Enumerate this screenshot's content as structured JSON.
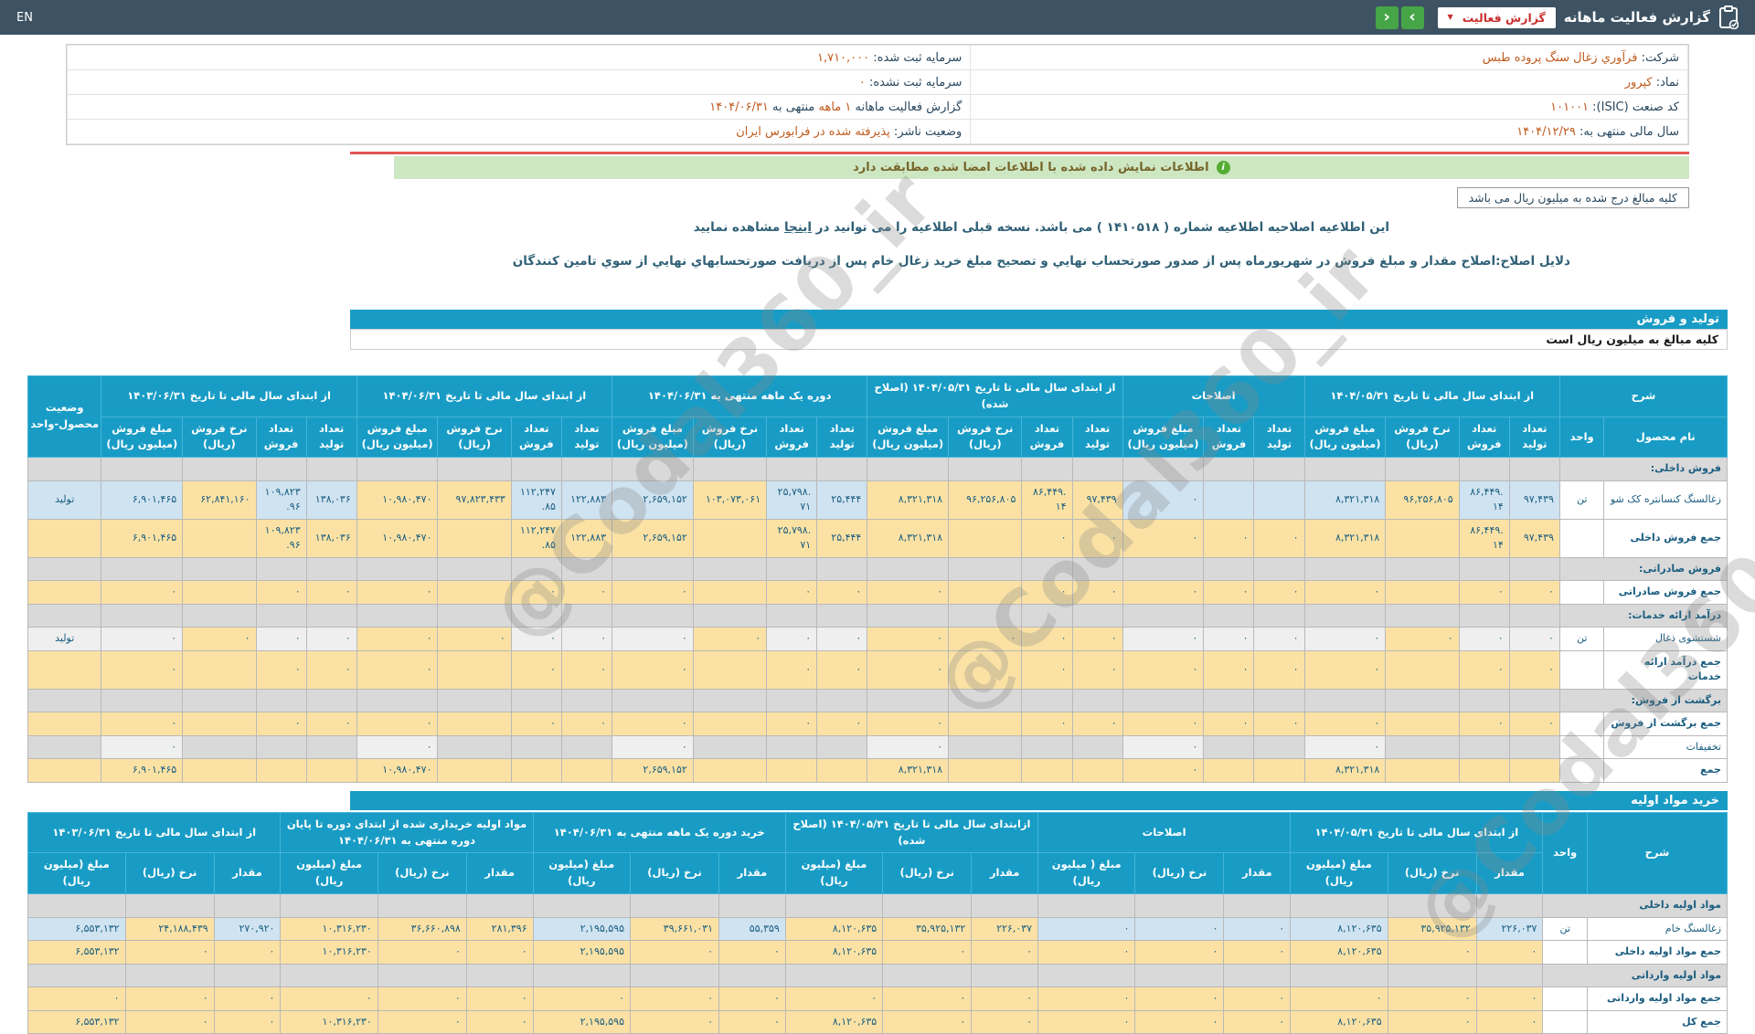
{
  "topbar": {
    "en": "EN",
    "title": "گزارش فعالیت ماهانه",
    "dropdown_label": "گزارش فعالیت",
    "caret": "▼",
    "nav_prev": "‹",
    "nav_next": "›"
  },
  "info": {
    "rows": [
      {
        "right": [
          [
            "شرکت: ",
            "l"
          ],
          [
            "فرآوري زغال سنگ پروده طبس",
            "v"
          ]
        ],
        "left": [
          [
            "سرمایه ثبت شده: ",
            "l"
          ],
          [
            "۱,۷۱۰,۰۰۰",
            "v"
          ]
        ]
      },
      {
        "right": [
          [
            "نماد: ",
            "l"
          ],
          [
            "کپرور",
            "v"
          ]
        ],
        "left": [
          [
            "سرمایه ثبت نشده: ",
            "l"
          ],
          [
            "۰",
            "v"
          ]
        ]
      },
      {
        "right": [
          [
            "کد صنعت (ISIC): ",
            "l"
          ],
          [
            "۱۰۱۰۰۱",
            "v"
          ]
        ],
        "left": [
          [
            "گزارش فعالیت ماهانه ",
            "l"
          ],
          [
            "۱ ماهه",
            "v"
          ],
          [
            " منتهی به ",
            "l"
          ],
          [
            "۱۴۰۴/۰۶/۳۱",
            "v"
          ]
        ]
      },
      {
        "right": [
          [
            "سال مالی منتهی به: ",
            "l"
          ],
          [
            "۱۴۰۴/۱۲/۲۹",
            "v"
          ]
        ],
        "left": [
          [
            "وضعیت ناشر: ",
            "l"
          ],
          [
            "پذیرفته شده در فرابورس ایران",
            "v"
          ]
        ]
      }
    ]
  },
  "banner": {
    "icon": "i",
    "text": "اطلاعات نمایش داده شده با اطلاعات امضا شده مطابقت دارد"
  },
  "unit_box": "کلیه مبالغ درج شده به میلیون ریال می باشد",
  "notice": {
    "pre": "این اطلاعیه اصلاحیه اطلاعیه شماره ( ۱۴۱۰۵۱۸ ) می باشد. نسخه قبلی اطلاعیه را می توانید در ",
    "link": "اینجا",
    "post": " مشاهده نمایید",
    "reason": "دلایل اصلاح:اصلاح مقدار و مبلغ فروش در شهریورماه پس از صدور صورتحساب نهایي و تصحیح مبلغ خرید زغال خام پس از دریافت صورتحسابهاي نهایي از سوي تامین کنندگان"
  },
  "watermark": "@Codal360_ir",
  "section1": {
    "title": "تولید و فروش",
    "subtitle": "کلیه مبالغ به میلیون ریال است"
  },
  "section2": {
    "title": "خرید مواد اولیه"
  },
  "colors": {
    "topbar": "#3d5363",
    "accent_blue": "#189cc5",
    "cell_blue": "#cfe3f1",
    "cell_yellow": "#fbe2a4",
    "green_banner": "#cde7c3",
    "red_line": "#e25653",
    "nav_green": "#46a546",
    "dropdown_red": "#c9302c",
    "value_orange": "#c05a1e"
  },
  "table1": {
    "status_col": true,
    "head1": [
      {
        "l": "شرح",
        "cs": 2,
        "rs": 1
      },
      {
        "l": "از ابتدای سال مالی تا تاریخ ۱۴۰۴/۰۵/۳۱",
        "cs": 4,
        "rs": 1
      },
      {
        "l": "اصلاحات",
        "cs": 3,
        "rs": 1
      },
      {
        "l": "از ابتدای سال مالی تا تاریخ ۱۴۰۴/۰۵/۳۱ (اصلاح شده)",
        "cs": 4,
        "rs": 1
      },
      {
        "l": "دوره یک ماهه منتهی به ۱۴۰۴/۰۶/۳۱",
        "cs": 4,
        "rs": 1
      },
      {
        "l": "از ابتدای سال مالی تا تاریخ ۱۴۰۴/۰۶/۳۱",
        "cs": 4,
        "rs": 1
      },
      {
        "l": "از ابتدای سال مالی تا تاریخ ۱۴۰۳/۰۶/۳۱",
        "cs": 4,
        "rs": 1
      },
      {
        "l": "وضعیت محصول-واحد",
        "cs": 1,
        "rs": 2
      }
    ],
    "head2": [
      "نام محصول",
      "واحد",
      "تعداد تولید",
      "تعداد فروش",
      "نرخ فروش (ریال)",
      "مبلغ فروش (میلیون ریال)",
      "تعداد تولید",
      "تعداد فروش",
      "مبلغ فروش (میلیون ریال)",
      "تعداد تولید",
      "تعداد فروش",
      "نرخ فروش (ریال)",
      "مبلغ فروش (میلیون ریال)",
      "تعداد تولید",
      "تعداد فروش",
      "نرخ فروش (ریال)",
      "مبلغ فروش (میلیون ریال)",
      "تعداد تولید",
      "تعداد فروش",
      "نرخ فروش (ریال)",
      "مبلغ فروش (میلیون ریال)",
      "تعداد تولید",
      "تعداد فروش",
      "نرخ فروش (ریال)",
      "مبلغ فروش (میلیون ریال)"
    ],
    "cols": [
      "n",
      "u",
      "q",
      "q",
      "r",
      "a",
      "q",
      "q",
      "a",
      "q",
      "q",
      "r",
      "a",
      "q",
      "q",
      "r",
      "a",
      "q",
      "q",
      "r",
      "a",
      "q",
      "q",
      "r",
      "a",
      "s"
    ],
    "rows": [
      {
        "t": "s",
        "l": "فروش داخلی:"
      },
      {
        "t": "d",
        "l": "زغالسنگ کنسانتره کک شو",
        "u": "تن",
        "st": "تولید",
        "base": "b",
        "y": [
          2,
          7,
          8,
          9,
          10,
          13,
          17,
          18,
          21
        ],
        "c": [
          "۹۷,۴۳۹",
          "۸۶,۴۴۹.۱۴",
          "۹۶,۲۵۶,۸۰۵",
          "۸,۳۲۱,۳۱۸",
          "",
          "",
          "۰",
          "۹۷,۴۳۹",
          "۸۶,۴۴۹.۱۴",
          "۹۶,۲۵۶,۸۰۵",
          "۸,۳۲۱,۳۱۸",
          "۲۵,۴۴۴",
          "۲۵,۷۹۸.۷۱",
          "۱۰۳,۰۷۳,۰۶۱",
          "۲,۶۵۹,۱۵۲",
          "۱۲۲,۸۸۳",
          "۱۱۲,۲۴۷.۸۵",
          "۹۷,۸۲۳,۴۳۳",
          "۱۰,۹۸۰,۴۷۰",
          "۱۳۸,۰۳۶",
          "۱۰۹,۸۲۳.۹۶",
          "۶۲,۸۴۱,۱۶۰",
          "۶,۹۰۱,۴۶۵"
        ]
      },
      {
        "t": "t",
        "l": "جمع فروش داخلی",
        "c": [
          "۹۷,۴۳۹",
          "۸۶,۴۴۹.۱۴",
          "",
          "۸,۳۲۱,۳۱۸",
          "۰",
          "۰",
          "۰",
          "۰",
          "۰",
          "",
          "۸,۳۲۱,۳۱۸",
          "۲۵,۴۴۴",
          "۲۵,۷۹۸.۷۱",
          "",
          "۲,۶۵۹,۱۵۲",
          "۱۲۲,۸۸۳",
          "۱۱۲,۲۴۷.۸۵",
          "",
          "۱۰,۹۸۰,۴۷۰",
          "۱۳۸,۰۳۶",
          "۱۰۹,۸۲۳.۹۶",
          "",
          "۶,۹۰۱,۴۶۵"
        ]
      },
      {
        "t": "s",
        "l": "فروش صادراتی:"
      },
      {
        "t": "t",
        "l": "جمع فروش صادراتی",
        "c": [
          "۰",
          "۰",
          "",
          "۰",
          "۰",
          "۰",
          "۰",
          "۰",
          "۰",
          "",
          "۰",
          "۰",
          "۰",
          "",
          "۰",
          "۰",
          "۰",
          "",
          "۰",
          "۰",
          "۰",
          "",
          "۰"
        ]
      },
      {
        "t": "s",
        "l": "درآمد ارائه خدمات:"
      },
      {
        "t": "d",
        "l": "شستشوی ذغال",
        "u": "تن",
        "st": "تولید",
        "base": "w",
        "y": [
          2,
          7,
          8,
          9,
          10,
          13,
          17,
          18,
          21
        ],
        "c": [
          "۰",
          "۰",
          "۰",
          "۰",
          "۰",
          "۰",
          "۰",
          "۰",
          "۰",
          "۰",
          "۰",
          "۰",
          "۰",
          "۰",
          "۰",
          "۰",
          "۰",
          "۰",
          "۰",
          "۰",
          "۰",
          "۰",
          "۰"
        ]
      },
      {
        "t": "t",
        "l": "جمع درآمد ارائه خدمات",
        "c": [
          "۰",
          "۰",
          "",
          "۰",
          "۰",
          "۰",
          "۰",
          "۰",
          "۰",
          "",
          "۰",
          "۰",
          "۰",
          "",
          "۰",
          "۰",
          "۰",
          "",
          "۰",
          "۰",
          "۰",
          "",
          "۰"
        ]
      },
      {
        "t": "s",
        "l": "برگشت از فروش:"
      },
      {
        "t": "t",
        "l": "جمع برگشت از فروش",
        "c": [
          "۰",
          "۰",
          "",
          "۰",
          "۰",
          "۰",
          "۰",
          "۰",
          "۰",
          "",
          "۰",
          "۰",
          "۰",
          "",
          "۰",
          "۰",
          "۰",
          "",
          "۰",
          "۰",
          "۰",
          "",
          "۰"
        ]
      },
      {
        "t": "x",
        "l": "تخفیفات",
        "c": [
          "",
          "",
          "",
          "۰",
          "",
          "",
          "۰",
          "",
          "",
          "",
          "۰",
          "",
          "",
          "",
          "۰",
          "",
          "",
          "",
          "۰",
          "",
          "",
          "",
          "۰"
        ]
      },
      {
        "t": "t",
        "l": "جمع",
        "c": [
          "",
          "",
          "",
          "۸,۳۲۱,۳۱۸",
          "",
          "",
          "۰",
          "",
          "",
          "",
          "۸,۳۲۱,۳۱۸",
          "",
          "",
          "",
          "۲,۶۵۹,۱۵۲",
          "",
          "",
          "",
          "۱۰,۹۸۰,۴۷۰",
          "",
          "",
          "",
          "۶,۹۰۱,۴۶۵"
        ]
      }
    ]
  },
  "table2": {
    "status_col": false,
    "head1": [
      {
        "l": "شرح",
        "cs": 1,
        "rs": 2
      },
      {
        "l": "واحد",
        "cs": 1,
        "rs": 2
      },
      {
        "l": "از ابتدای سال مالی تا تاریخ ۱۴۰۴/۰۵/۳۱",
        "cs": 3,
        "rs": 1
      },
      {
        "l": "اصلاحات",
        "cs": 3,
        "rs": 1
      },
      {
        "l": "ازابتدای سال مالی تا تاریخ ۱۴۰۴/۰۵/۳۱ (اصلاح شده)",
        "cs": 3,
        "rs": 1
      },
      {
        "l": "خرید دوره یک ماهه منتهی به ۱۴۰۴/۰۶/۳۱",
        "cs": 3,
        "rs": 1
      },
      {
        "l": "مواد اولیه خریداری شده از ابتدای دوره تا پایان دوره منتهی به ۱۴۰۴/۰۶/۳۱",
        "cs": 3,
        "rs": 1
      },
      {
        "l": "از ابتدای سال مالی تا تاریخ ۱۴۰۳/۰۶/۳۱",
        "cs": 3,
        "rs": 1
      }
    ],
    "head2": [
      "مقدار",
      "نرخ (ریال)",
      "مبلغ (میلیون ریال)",
      "مقدار",
      "نرخ (ریال)",
      "مبلغ ( میلیون ریال)",
      "مقدار",
      "نرخ (ریال)",
      "مبلغ (میلیون ریال)",
      "مقدار",
      "نرخ (ریال)",
      "مبلغ (میلیون ریال)",
      "مقدار",
      "نرخ (ریال)",
      "مبلغ (میلیون ریال)",
      "مقدار",
      "نرخ (ریال)",
      "مبلغ (میلیون ریال)"
    ],
    "cols": [
      "n2",
      "u",
      "q2",
      "r2",
      "a2",
      "q2",
      "r2",
      "a2",
      "q2",
      "r2",
      "a2",
      "q2",
      "r2",
      "a2",
      "q2",
      "r2",
      "a2",
      "q2",
      "r2",
      "a2"
    ],
    "rows": [
      {
        "t": "s",
        "l": "مواد اولیه داخلی"
      },
      {
        "t": "d",
        "l": "زغالسنگ خام",
        "u": "تن",
        "base": "b",
        "y": [
          1,
          6,
          7,
          8,
          10,
          12,
          13,
          14,
          16
        ],
        "c": [
          "۲۲۶,۰۳۷",
          "۳۵,۹۲۵,۱۳۲",
          "۸,۱۲۰,۶۳۵",
          "۰",
          "۰",
          "۰",
          "۲۲۶,۰۳۷",
          "۳۵,۹۲۵,۱۳۲",
          "۸,۱۲۰,۶۳۵",
          "۵۵,۳۵۹",
          "۳۹,۶۶۱,۰۳۱",
          "۲,۱۹۵,۵۹۵",
          "۲۸۱,۳۹۶",
          "۳۶,۶۶۰,۸۹۸",
          "۱۰,۳۱۶,۲۳۰",
          "۲۷۰,۹۲۰",
          "۲۴,۱۸۸,۴۳۹",
          "۶,۵۵۳,۱۳۲"
        ]
      },
      {
        "t": "t",
        "l": "جمع مواد اولیه داخلی",
        "c": [
          "۰",
          "۰",
          "۸,۱۲۰,۶۳۵",
          "۰",
          "۰",
          "۰",
          "۰",
          "۰",
          "۸,۱۲۰,۶۳۵",
          "۰",
          "۰",
          "۲,۱۹۵,۵۹۵",
          "۰",
          "۰",
          "۱۰,۳۱۶,۲۳۰",
          "۰",
          "۰",
          "۶,۵۵۳,۱۳۲"
        ]
      },
      {
        "t": "s",
        "l": "مواد اولیه وارداتی"
      },
      {
        "t": "t",
        "l": "جمع مواد اولیه وارداتی",
        "c": [
          "۰",
          "۰",
          "۰",
          "۰",
          "۰",
          "۰",
          "۰",
          "۰",
          "۰",
          "۰",
          "۰",
          "۰",
          "۰",
          "۰",
          "۰",
          "۰",
          "۰",
          "۰"
        ]
      },
      {
        "t": "t",
        "l": "جمع کل",
        "c": [
          "۰",
          "۰",
          "۸,۱۲۰,۶۳۵",
          "۰",
          "۰",
          "۰",
          "۰",
          "۰",
          "۸,۱۲۰,۶۳۵",
          "۰",
          "۰",
          "۲,۱۹۵,۵۹۵",
          "۰",
          "۰",
          "۱۰,۳۱۶,۲۳۰",
          "۰",
          "۰",
          "۶,۵۵۳,۱۳۲"
        ]
      }
    ]
  }
}
